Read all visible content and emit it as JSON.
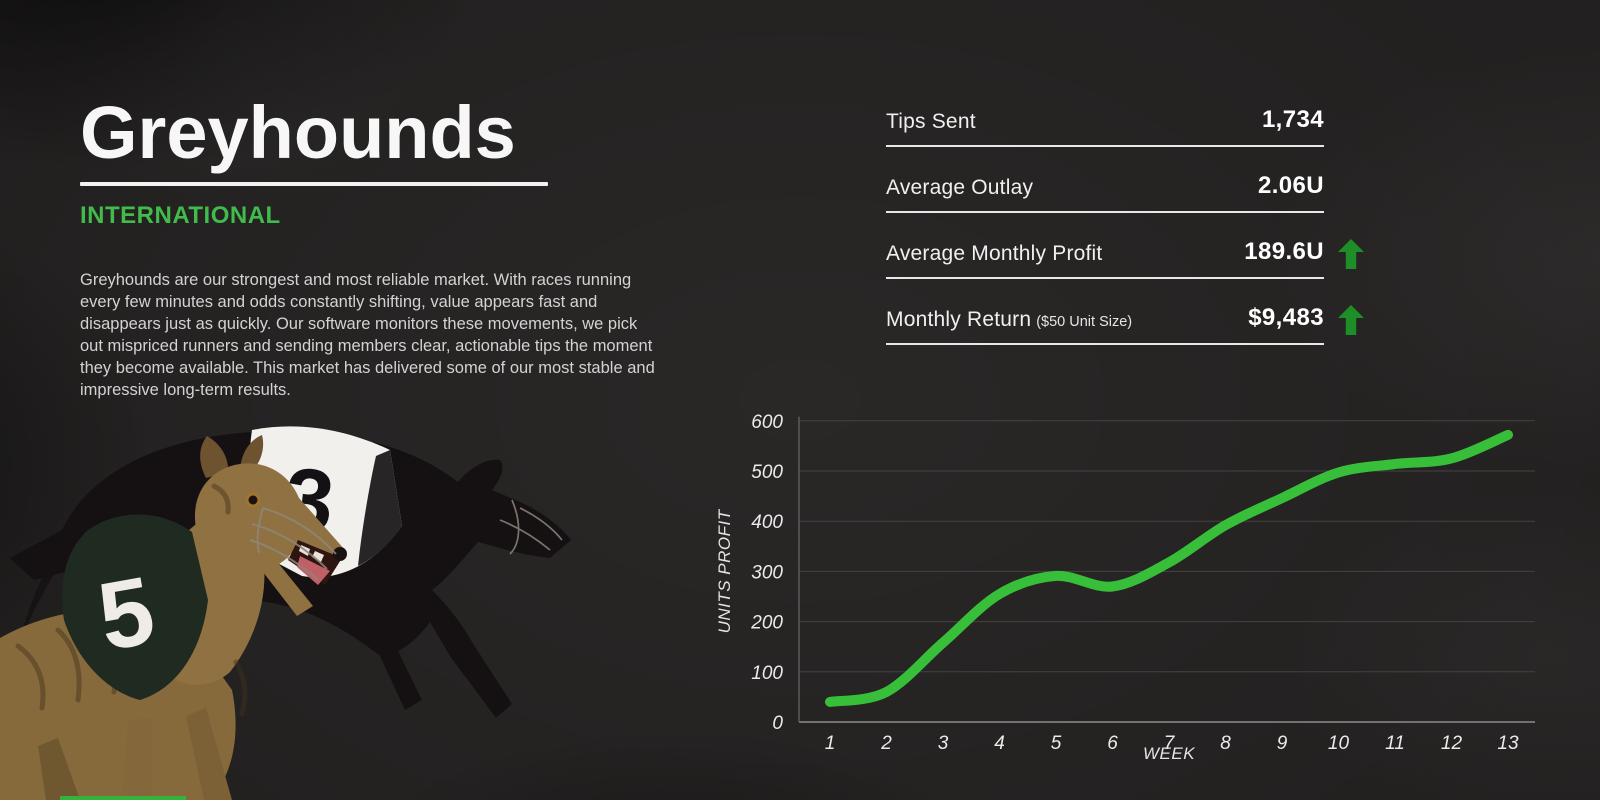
{
  "hero": {
    "title": "Greyhounds",
    "subtitle": "INTERNATIONAL",
    "description": "Greyhounds are our strongest and most reliable market. With races running every few minutes and odds constantly shifting, value appears fast and disappears just as quickly. Our software monitors these movements, we pick out mispriced runners and sending members clear, actionable tips the moment they become available. This market has delivered some of our most stable and impressive long-term results."
  },
  "stats": {
    "rows": [
      {
        "label": "Tips Sent",
        "value": "1,734",
        "has_arrow": false
      },
      {
        "label": "Average Outlay",
        "value": "2.06U",
        "has_arrow": false
      },
      {
        "label": "Average Monthly Profit",
        "value": "189.6U",
        "has_arrow": true
      },
      {
        "label": "Monthly Return",
        "note": "($50 Unit Size)",
        "value": "$9,483",
        "has_arrow": true
      }
    ]
  },
  "chart_data": {
    "type": "line",
    "title": "",
    "xlabel": "WEEK",
    "ylabel": "UNITS PROFIT",
    "x": [
      1,
      2,
      3,
      4,
      5,
      6,
      7,
      8,
      9,
      10,
      11,
      12,
      13
    ],
    "series": [
      {
        "name": "Units Profit",
        "values": [
          40,
          60,
          158,
          255,
          291,
          270,
          318,
          392,
          446,
          497,
          514,
          525,
          572
        ]
      }
    ],
    "ylim": [
      0,
      600
    ],
    "yticks": [
      0,
      100,
      200,
      300,
      400,
      500,
      600
    ],
    "grid": true,
    "legend": false,
    "line_color": "#38bf3a"
  },
  "illustration": {
    "alt": "Two racing greyhounds wearing numbered racing vests",
    "dogs": [
      {
        "number": "3",
        "vest_color": "white",
        "coat": "black"
      },
      {
        "number": "5",
        "vest_color": "dark green",
        "coat": "brindle"
      }
    ]
  },
  "colors": {
    "background": "#2a2727",
    "accent_green": "#41bb4a",
    "chart_line": "#38bf3a",
    "arrow_green": "#1e8f28",
    "text_primary": "#f8f7f7",
    "text_secondary": "#d5d2d3"
  }
}
